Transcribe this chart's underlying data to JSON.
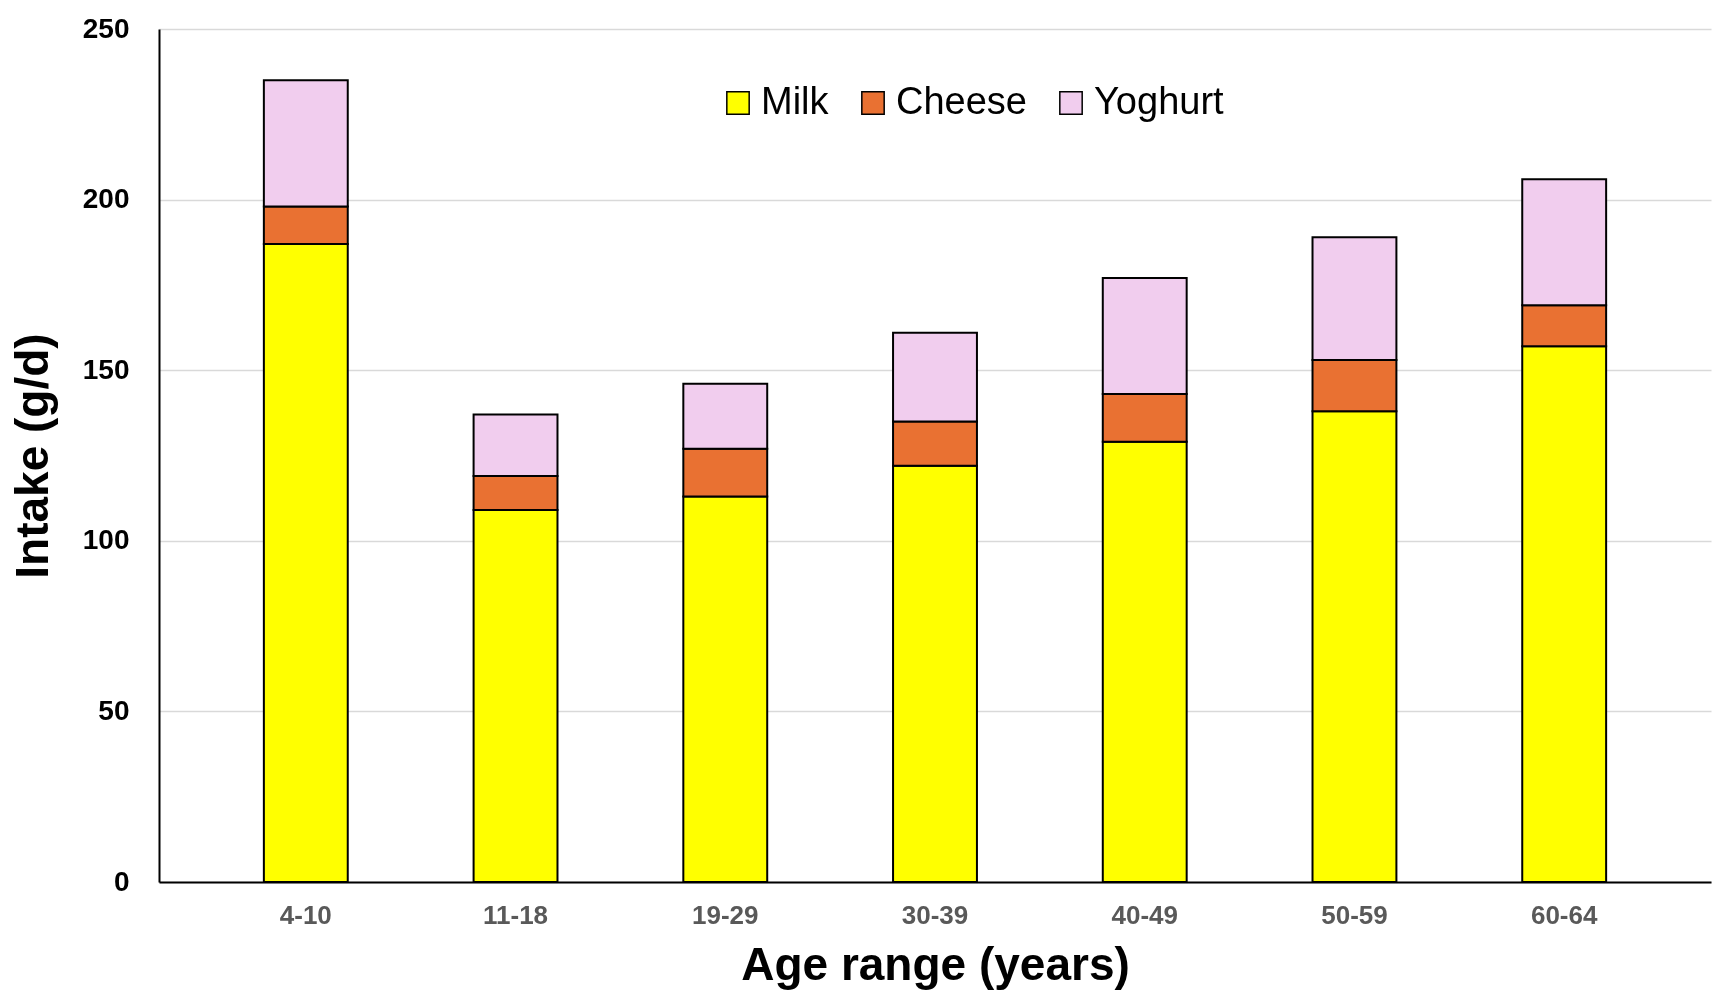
{
  "chart_data": {
    "type": "bar",
    "stacked": true,
    "xlabel": "Age range (years)",
    "ylabel": "Intake (g/d)",
    "categories": [
      "4-10",
      "11-18",
      "19-29",
      "30-39",
      "40-49",
      "50-59",
      "60-64"
    ],
    "series": [
      {
        "name": "Milk",
        "color": "#ffff00",
        "values": [
          187,
          109,
          113,
          122,
          129,
          138,
          157
        ]
      },
      {
        "name": "Cheese",
        "color": "#e97132",
        "values": [
          11,
          10,
          14,
          13,
          14,
          15,
          12
        ]
      },
      {
        "name": "Yoghurt",
        "color": "#f1cdee",
        "values": [
          37,
          18,
          19,
          26,
          34,
          36,
          37
        ]
      }
    ],
    "ylim": [
      0,
      250
    ],
    "yticks": [
      0,
      50,
      100,
      150,
      200,
      250
    ],
    "grid": "y",
    "legend": "top"
  }
}
